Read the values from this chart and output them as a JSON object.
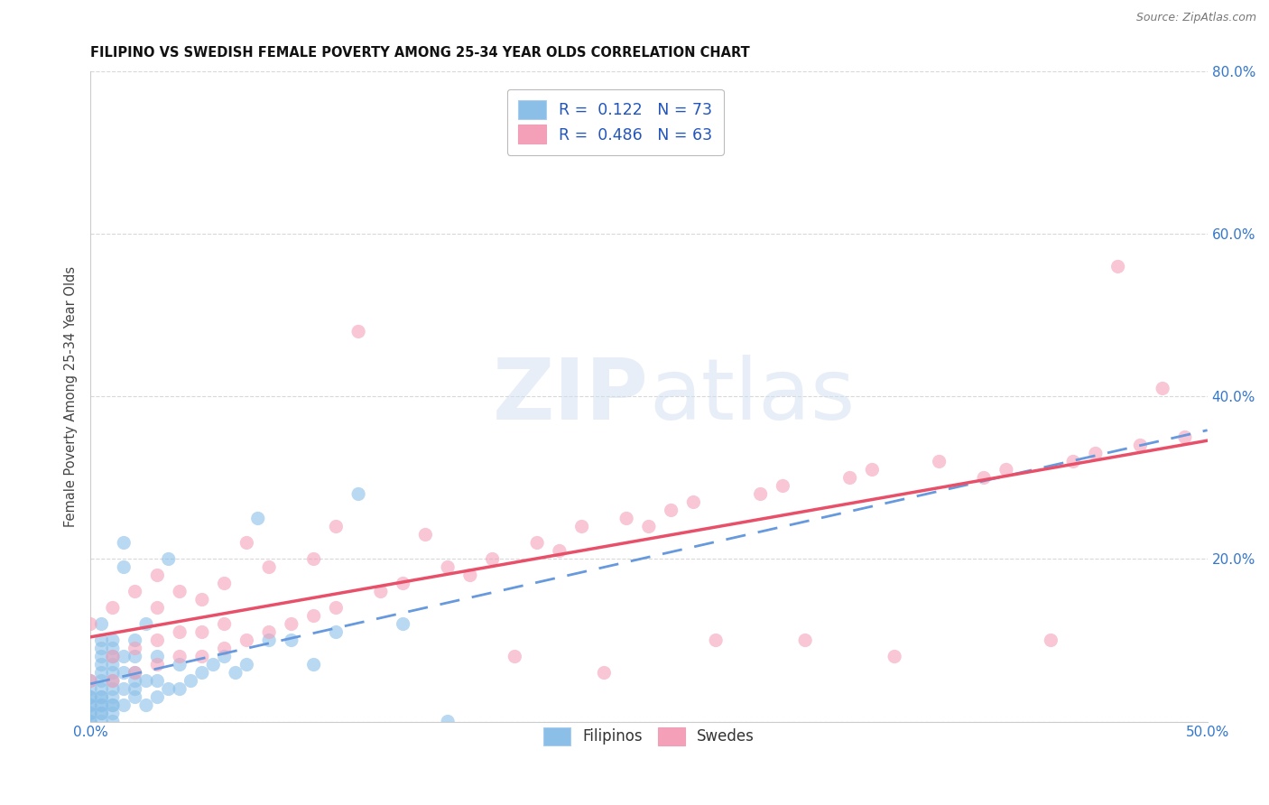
{
  "title": "FILIPINO VS SWEDISH FEMALE POVERTY AMONG 25-34 YEAR OLDS CORRELATION CHART",
  "source": "Source: ZipAtlas.com",
  "ylabel": "Female Poverty Among 25-34 Year Olds",
  "xlim": [
    0.0,
    0.5
  ],
  "ylim": [
    0.0,
    0.8
  ],
  "xticks": [
    0.0,
    0.1,
    0.2,
    0.3,
    0.4,
    0.5
  ],
  "yticks": [
    0.0,
    0.2,
    0.4,
    0.6,
    0.8
  ],
  "xticklabels_ends": [
    "0.0%",
    "50.0%"
  ],
  "yticklabels": [
    "",
    "20.0%",
    "40.0%",
    "60.0%",
    "80.0%"
  ],
  "watermark_zip": "ZIP",
  "watermark_atlas": "atlas",
  "filipino_color": "#8BBFE8",
  "filipino_edge": "#6A9FD0",
  "swedish_color": "#F4A0B8",
  "swedish_edge": "#E07090",
  "filipino_R": 0.122,
  "filipino_N": 73,
  "swedish_R": 0.486,
  "swedish_N": 63,
  "legend_labels": [
    "Filipinos",
    "Swedes"
  ],
  "background_color": "#ffffff",
  "grid_color": "#d8d8d8",
  "trend_filipino_color": "#6699DD",
  "trend_swedish_color": "#E8506A",
  "filipino_scatter_x": [
    0.0,
    0.0,
    0.0,
    0.0,
    0.0,
    0.0,
    0.0,
    0.0,
    0.0,
    0.0,
    0.005,
    0.005,
    0.005,
    0.005,
    0.005,
    0.005,
    0.005,
    0.005,
    0.005,
    0.005,
    0.005,
    0.005,
    0.005,
    0.005,
    0.005,
    0.01,
    0.01,
    0.01,
    0.01,
    0.01,
    0.01,
    0.01,
    0.01,
    0.01,
    0.01,
    0.01,
    0.01,
    0.015,
    0.015,
    0.015,
    0.015,
    0.015,
    0.015,
    0.02,
    0.02,
    0.02,
    0.02,
    0.02,
    0.02,
    0.025,
    0.025,
    0.025,
    0.03,
    0.03,
    0.03,
    0.035,
    0.035,
    0.04,
    0.04,
    0.045,
    0.05,
    0.055,
    0.06,
    0.065,
    0.07,
    0.075,
    0.08,
    0.09,
    0.1,
    0.11,
    0.12,
    0.14,
    0.16
  ],
  "filipino_scatter_y": [
    0.0,
    0.0,
    0.01,
    0.01,
    0.02,
    0.02,
    0.03,
    0.03,
    0.04,
    0.05,
    0.0,
    0.01,
    0.01,
    0.02,
    0.02,
    0.03,
    0.03,
    0.04,
    0.05,
    0.06,
    0.07,
    0.08,
    0.09,
    0.1,
    0.12,
    0.0,
    0.01,
    0.02,
    0.02,
    0.03,
    0.04,
    0.05,
    0.06,
    0.07,
    0.08,
    0.09,
    0.1,
    0.02,
    0.04,
    0.06,
    0.08,
    0.19,
    0.22,
    0.03,
    0.04,
    0.05,
    0.06,
    0.08,
    0.1,
    0.02,
    0.05,
    0.12,
    0.03,
    0.05,
    0.08,
    0.04,
    0.2,
    0.04,
    0.07,
    0.05,
    0.06,
    0.07,
    0.08,
    0.06,
    0.07,
    0.25,
    0.1,
    0.1,
    0.07,
    0.11,
    0.28,
    0.12,
    0.0
  ],
  "swedish_scatter_x": [
    0.0,
    0.0,
    0.01,
    0.01,
    0.01,
    0.02,
    0.02,
    0.02,
    0.03,
    0.03,
    0.03,
    0.03,
    0.04,
    0.04,
    0.04,
    0.05,
    0.05,
    0.05,
    0.06,
    0.06,
    0.06,
    0.07,
    0.07,
    0.08,
    0.08,
    0.09,
    0.1,
    0.1,
    0.11,
    0.11,
    0.12,
    0.13,
    0.14,
    0.15,
    0.16,
    0.17,
    0.18,
    0.19,
    0.2,
    0.21,
    0.22,
    0.23,
    0.24,
    0.25,
    0.26,
    0.27,
    0.28,
    0.3,
    0.31,
    0.32,
    0.34,
    0.35,
    0.36,
    0.38,
    0.4,
    0.41,
    0.43,
    0.44,
    0.45,
    0.46,
    0.47,
    0.48,
    0.49
  ],
  "swedish_scatter_y": [
    0.05,
    0.12,
    0.05,
    0.08,
    0.14,
    0.06,
    0.09,
    0.16,
    0.07,
    0.1,
    0.14,
    0.18,
    0.08,
    0.11,
    0.16,
    0.08,
    0.11,
    0.15,
    0.09,
    0.12,
    0.17,
    0.1,
    0.22,
    0.11,
    0.19,
    0.12,
    0.13,
    0.2,
    0.14,
    0.24,
    0.48,
    0.16,
    0.17,
    0.23,
    0.19,
    0.18,
    0.2,
    0.08,
    0.22,
    0.21,
    0.24,
    0.06,
    0.25,
    0.24,
    0.26,
    0.27,
    0.1,
    0.28,
    0.29,
    0.1,
    0.3,
    0.31,
    0.08,
    0.32,
    0.3,
    0.31,
    0.1,
    0.32,
    0.33,
    0.56,
    0.34,
    0.41,
    0.35
  ]
}
